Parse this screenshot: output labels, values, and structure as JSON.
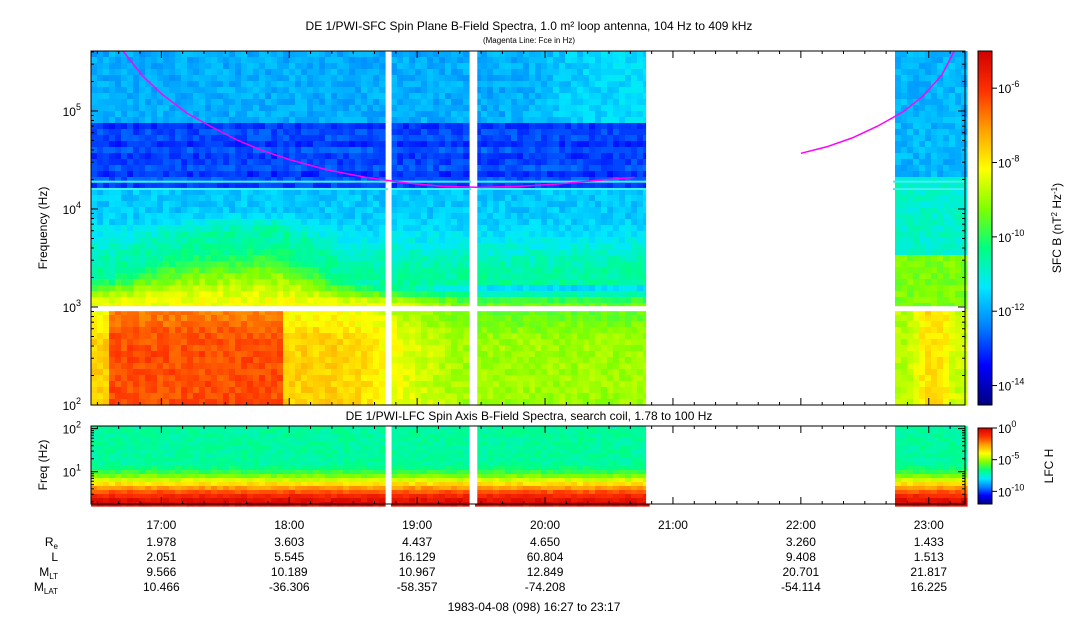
{
  "colors": {
    "fce_line": "#ff00ff",
    "gap_fill": "#ffffff",
    "colormap": [
      "#000080",
      "#0000ff",
      "#0080ff",
      "#00e8ff",
      "#00ff80",
      "#80ff00",
      "#ffff00",
      "#ffa000",
      "#ff3000",
      "#d00000"
    ]
  },
  "time_axis": {
    "start_hours": 16.45,
    "end_hours": 23.2833,
    "tick_labels": [
      "17:00",
      "18:00",
      "19:00",
      "20:00",
      "21:00",
      "22:00",
      "23:00"
    ],
    "tick_hours": [
      17,
      18,
      19,
      20,
      21,
      22,
      23
    ]
  },
  "data_gaps_hours": [
    [
      18.77,
      18.8
    ],
    [
      19.42,
      19.47
    ],
    [
      20.79,
      22.72
    ]
  ],
  "chart_data": [
    {
      "type": "heatmap",
      "title": "DE 1/PWI-SFC  Spin Plane B-Field Spectra, 1.0 m² loop antenna, 104 Hz to 409 kHz",
      "subtitle": "(Magenta Line: Fce in Hz)",
      "xlabel": "",
      "ylabel": "Frequency (Hz)",
      "yscale": "log",
      "ylim": [
        100,
        409000
      ],
      "y_ticks": [
        100,
        1000,
        10000,
        100000
      ],
      "y_tick_labels": [
        {
          "mantissa": "10",
          "exponent": "2"
        },
        {
          "mantissa": "10",
          "exponent": "3"
        },
        {
          "mantissa": "10",
          "exponent": "4"
        },
        {
          "mantissa": "10",
          "exponent": "5"
        }
      ],
      "colorbar": {
        "label_prefix": "SFC B (nT",
        "label_mid": " Hz",
        "label_suffix": ")",
        "label_exp1": "2",
        "label_exp2": "-1",
        "scale": "log",
        "range": [
          3e-15,
          1e-05
        ],
        "tick_labels": [
          {
            "mantissa": "10",
            "exponent": "-6"
          },
          {
            "mantissa": "10",
            "exponent": "-8"
          },
          {
            "mantissa": "10",
            "exponent": "-10"
          },
          {
            "mantissa": "10",
            "exponent": "-12"
          },
          {
            "mantissa": "10",
            "exponent": "-14"
          }
        ],
        "tick_exponents": [
          -6,
          -8,
          -10,
          -12,
          -14
        ]
      },
      "series": [
        {
          "type": "line",
          "x_hours": [
            16.7,
            16.85,
            17.0,
            17.2,
            17.4,
            17.6,
            17.8,
            18.0,
            18.3,
            18.6,
            18.9,
            19.2,
            19.5,
            19.8,
            20.1,
            20.4,
            20.7
          ],
          "y": [
            409000,
            230000,
            150000,
            95000,
            68000,
            50000,
            39000,
            32000,
            25000,
            21000,
            18500,
            17000,
            16600,
            17000,
            18000,
            19500,
            21000
          ]
        },
        {
          "type": "line",
          "x_hours": [
            22.0,
            22.2,
            22.4,
            22.6,
            22.8,
            22.95,
            23.1,
            23.2
          ],
          "y": [
            37000,
            43000,
            53000,
            70000,
            98000,
            140000,
            230000,
            409000
          ]
        }
      ]
    },
    {
      "type": "heatmap",
      "title": "DE 1/PWI-LFC  Spin Axis B-Field Spectra, search coil, 1.78 to 100 Hz",
      "xlabel": "",
      "ylabel": "Freq (Hz)",
      "yscale": "log",
      "ylim": [
        1.78,
        115
      ],
      "y_ticks": [
        10,
        100
      ],
      "y_tick_labels": [
        {
          "mantissa": "10",
          "exponent": "1"
        },
        {
          "mantissa": "10",
          "exponent": "2"
        }
      ],
      "colorbar": {
        "label": "LFC H",
        "scale": "log",
        "range": [
          1e-12,
          1
        ],
        "tick_labels": [
          {
            "mantissa": "10",
            "exponent": "0"
          },
          {
            "mantissa": "10",
            "exponent": "-5"
          },
          {
            "mantissa": "10",
            "exponent": "-10"
          }
        ],
        "tick_exponents": [
          0,
          -5,
          -10
        ]
      }
    }
  ],
  "ephemeris": {
    "rows": [
      {
        "label_main": "R",
        "label_sub": "e",
        "values": [
          "1.978",
          "3.603",
          "4.437",
          "4.650",
          "",
          "3.260",
          "1.433"
        ]
      },
      {
        "label_main": "L",
        "label_sub": "",
        "values": [
          "2.051",
          "5.545",
          "16.129",
          "60.804",
          "",
          "9.408",
          "1.513"
        ]
      },
      {
        "label_main": "M",
        "label_sub": "LT",
        "values": [
          "9.566",
          "10.189",
          "10.967",
          "12.849",
          "",
          "20.701",
          "21.817"
        ]
      },
      {
        "label_main": "M",
        "label_sub": "LAT",
        "values": [
          "10.466",
          "-36.306",
          "-58.357",
          "-74.208",
          "",
          "-54.114",
          "16.225"
        ]
      }
    ]
  },
  "footer": "1983-04-08 (098) 16:27 to 23:17"
}
